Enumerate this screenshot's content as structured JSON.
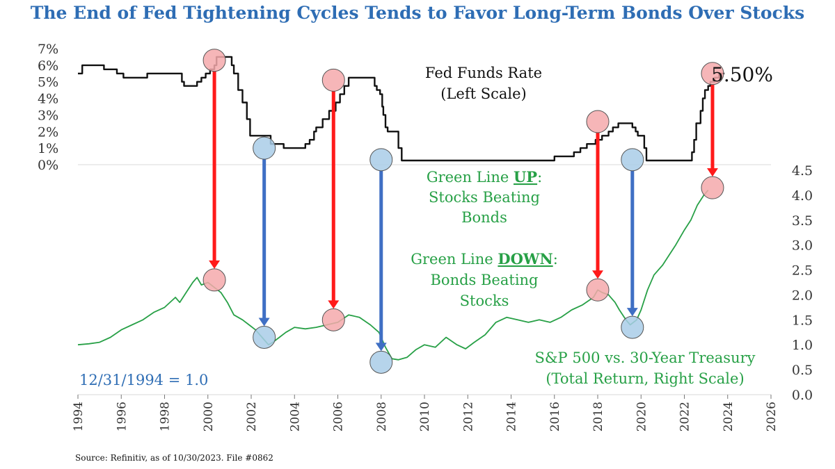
{
  "title": "The End of Fed Tightening Cycles Tends to Favor Long-Term Bonds Over Stocks",
  "source": "Source: Refinitiv, as of 10/30/2023. File #0862",
  "colors": {
    "title": "#2e6db4",
    "fed_line": "#111111",
    "ratio_line": "#27a046",
    "tightening_end": "#ff1a1a",
    "easing_start": "#3f6fc4",
    "pink_marker": "#f4a9ab",
    "blue_marker": "#a9cce8"
  },
  "chart_data": {
    "type": "line",
    "x_axis": {
      "range": [
        1994,
        2026
      ],
      "tick_labels": [
        "1994",
        "1996",
        "1998",
        "2000",
        "2002",
        "2004",
        "2006",
        "2008",
        "2010",
        "2012",
        "2014",
        "2016",
        "2018",
        "2020",
        "2022",
        "2024",
        "2026"
      ]
    },
    "left_axis": {
      "label": "Fed Funds Rate (Left Scale)",
      "range": [
        0,
        7
      ],
      "tick_labels": [
        "0%",
        "1%",
        "2%",
        "3%",
        "4%",
        "5%",
        "6%",
        "7%"
      ]
    },
    "right_axis": {
      "label": "S&P 500 vs. 30-Year Treasury (Total Return, Right Scale)",
      "range": [
        0,
        4.5
      ],
      "tick_labels": [
        "0.0",
        "0.5",
        "1.0",
        "1.5",
        "2.0",
        "2.5",
        "3.0",
        "3.5",
        "4.0",
        "4.5"
      ]
    },
    "series": [
      {
        "name": "Fed Funds Rate",
        "axis": "left",
        "step": true,
        "points": [
          [
            1994.0,
            5.5
          ],
          [
            1994.2,
            6.0
          ],
          [
            1994.6,
            6.0
          ],
          [
            1995.2,
            5.75
          ],
          [
            1995.8,
            5.5
          ],
          [
            1996.1,
            5.25
          ],
          [
            1997.2,
            5.5
          ],
          [
            1998.7,
            5.5
          ],
          [
            1998.8,
            5.0
          ],
          [
            1998.9,
            4.75
          ],
          [
            1999.5,
            5.0
          ],
          [
            1999.7,
            5.25
          ],
          [
            1999.9,
            5.5
          ],
          [
            2000.1,
            5.75
          ],
          [
            2000.3,
            6.0
          ],
          [
            2000.4,
            6.5
          ],
          [
            2001.0,
            6.5
          ],
          [
            2001.1,
            6.0
          ],
          [
            2001.2,
            5.5
          ],
          [
            2001.4,
            4.5
          ],
          [
            2001.6,
            3.75
          ],
          [
            2001.8,
            2.75
          ],
          [
            2001.95,
            1.75
          ],
          [
            2002.8,
            1.75
          ],
          [
            2002.9,
            1.25
          ],
          [
            2003.5,
            1.0
          ],
          [
            2004.4,
            1.0
          ],
          [
            2004.5,
            1.25
          ],
          [
            2004.7,
            1.5
          ],
          [
            2004.9,
            2.0
          ],
          [
            2005.0,
            2.25
          ],
          [
            2005.3,
            2.75
          ],
          [
            2005.6,
            3.25
          ],
          [
            2005.9,
            3.75
          ],
          [
            2006.1,
            4.25
          ],
          [
            2006.3,
            4.75
          ],
          [
            2006.5,
            5.25
          ],
          [
            2007.6,
            5.25
          ],
          [
            2007.7,
            4.75
          ],
          [
            2007.8,
            4.5
          ],
          [
            2007.95,
            4.25
          ],
          [
            2008.05,
            3.5
          ],
          [
            2008.1,
            3.0
          ],
          [
            2008.2,
            2.25
          ],
          [
            2008.3,
            2.0
          ],
          [
            2008.8,
            1.0
          ],
          [
            2008.95,
            0.25
          ],
          [
            2015.9,
            0.25
          ],
          [
            2016.0,
            0.5
          ],
          [
            2016.9,
            0.75
          ],
          [
            2017.2,
            1.0
          ],
          [
            2017.5,
            1.25
          ],
          [
            2017.9,
            1.5
          ],
          [
            2018.2,
            1.75
          ],
          [
            2018.5,
            2.0
          ],
          [
            2018.7,
            2.25
          ],
          [
            2018.95,
            2.5
          ],
          [
            2019.5,
            2.5
          ],
          [
            2019.6,
            2.25
          ],
          [
            2019.75,
            2.0
          ],
          [
            2019.85,
            1.75
          ],
          [
            2020.15,
            1.0
          ],
          [
            2020.25,
            0.25
          ],
          [
            2022.2,
            0.25
          ],
          [
            2022.35,
            0.75
          ],
          [
            2022.45,
            1.5
          ],
          [
            2022.55,
            2.5
          ],
          [
            2022.75,
            3.25
          ],
          [
            2022.85,
            4.0
          ],
          [
            2022.95,
            4.5
          ],
          [
            2023.1,
            4.75
          ],
          [
            2023.2,
            5.0
          ],
          [
            2023.4,
            5.25
          ],
          [
            2023.6,
            5.5
          ],
          [
            2023.85,
            5.5
          ]
        ]
      },
      {
        "name": "S&P 500 vs. 30-Year Treasury",
        "axis": "right",
        "points": [
          [
            1994.0,
            1.0
          ],
          [
            1994.5,
            1.02
          ],
          [
            1995.0,
            1.05
          ],
          [
            1995.5,
            1.15
          ],
          [
            1996.0,
            1.3
          ],
          [
            1996.5,
            1.4
          ],
          [
            1997.0,
            1.5
          ],
          [
            1997.5,
            1.65
          ],
          [
            1998.0,
            1.75
          ],
          [
            1998.5,
            1.95
          ],
          [
            1998.7,
            1.85
          ],
          [
            1999.0,
            2.05
          ],
          [
            1999.3,
            2.25
          ],
          [
            1999.5,
            2.35
          ],
          [
            1999.7,
            2.2
          ],
          [
            2000.0,
            2.25
          ],
          [
            2000.3,
            2.15
          ],
          [
            2000.6,
            2.05
          ],
          [
            2000.9,
            1.85
          ],
          [
            2001.2,
            1.6
          ],
          [
            2001.6,
            1.5
          ],
          [
            2001.9,
            1.4
          ],
          [
            2002.2,
            1.3
          ],
          [
            2002.5,
            1.15
          ],
          [
            2002.8,
            1.0
          ],
          [
            2003.0,
            1.05
          ],
          [
            2003.3,
            1.15
          ],
          [
            2003.6,
            1.25
          ],
          [
            2004.0,
            1.35
          ],
          [
            2004.5,
            1.32
          ],
          [
            2005.0,
            1.35
          ],
          [
            2005.5,
            1.4
          ],
          [
            2006.0,
            1.45
          ],
          [
            2006.5,
            1.6
          ],
          [
            2007.0,
            1.55
          ],
          [
            2007.5,
            1.4
          ],
          [
            2007.9,
            1.25
          ],
          [
            2008.2,
            0.95
          ],
          [
            2008.5,
            0.72
          ],
          [
            2008.8,
            0.7
          ],
          [
            2009.2,
            0.75
          ],
          [
            2009.6,
            0.9
          ],
          [
            2010.0,
            1.0
          ],
          [
            2010.5,
            0.95
          ],
          [
            2011.0,
            1.15
          ],
          [
            2011.5,
            1.0
          ],
          [
            2011.9,
            0.92
          ],
          [
            2012.3,
            1.05
          ],
          [
            2012.8,
            1.2
          ],
          [
            2013.3,
            1.45
          ],
          [
            2013.8,
            1.55
          ],
          [
            2014.3,
            1.5
          ],
          [
            2014.8,
            1.45
          ],
          [
            2015.3,
            1.5
          ],
          [
            2015.8,
            1.45
          ],
          [
            2016.3,
            1.55
          ],
          [
            2016.8,
            1.7
          ],
          [
            2017.3,
            1.8
          ],
          [
            2017.8,
            1.95
          ],
          [
            2018.0,
            2.1
          ],
          [
            2018.2,
            2.05
          ],
          [
            2018.5,
            2.0
          ],
          [
            2018.8,
            1.85
          ],
          [
            2019.0,
            1.7
          ],
          [
            2019.3,
            1.5
          ],
          [
            2019.5,
            1.4
          ],
          [
            2019.8,
            1.5
          ],
          [
            2020.0,
            1.7
          ],
          [
            2020.3,
            2.1
          ],
          [
            2020.6,
            2.4
          ],
          [
            2021.0,
            2.6
          ],
          [
            2021.3,
            2.8
          ],
          [
            2021.6,
            3.0
          ],
          [
            2022.0,
            3.3
          ],
          [
            2022.3,
            3.5
          ],
          [
            2022.6,
            3.8
          ],
          [
            2022.9,
            4.0
          ],
          [
            2023.1,
            4.1
          ]
        ]
      }
    ],
    "markers": [
      {
        "x": 2000.3,
        "left": 6.3,
        "kind": "tightening_peak"
      },
      {
        "x": 2005.8,
        "left": 5.1,
        "kind": "tightening_peak"
      },
      {
        "x": 2018.0,
        "left": 2.6,
        "kind": "tightening_peak"
      },
      {
        "x": 2023.3,
        "left": 5.5,
        "kind": "tightening_peak"
      },
      {
        "x": 2002.6,
        "left": 1.0,
        "kind": "easing_start"
      },
      {
        "x": 2008.0,
        "left": 0.3,
        "kind": "easing_start"
      },
      {
        "x": 2019.6,
        "left": 0.3,
        "kind": "easing_start"
      },
      {
        "x": 2000.3,
        "right": 2.3,
        "kind": "ratio_peak"
      },
      {
        "x": 2005.8,
        "right": 1.5,
        "kind": "ratio_peak"
      },
      {
        "x": 2018.0,
        "right": 2.1,
        "kind": "ratio_peak"
      },
      {
        "x": 2023.3,
        "right": 4.15,
        "kind": "ratio_peak"
      },
      {
        "x": 2002.6,
        "right": 1.15,
        "kind": "ratio_trough"
      },
      {
        "x": 2008.0,
        "right": 0.65,
        "kind": "ratio_trough"
      },
      {
        "x": 2019.6,
        "right": 1.35,
        "kind": "ratio_trough"
      }
    ],
    "arrows": [
      {
        "x": 2000.3,
        "from_left": 6.3,
        "to_right": 2.3,
        "kind": "tightening_end"
      },
      {
        "x": 2005.8,
        "from_left": 5.1,
        "to_right": 1.5,
        "kind": "tightening_end"
      },
      {
        "x": 2018.0,
        "from_left": 2.6,
        "to_right": 2.1,
        "kind": "tightening_end"
      },
      {
        "x": 2023.3,
        "from_left": 5.5,
        "to_right": 4.15,
        "kind": "tightening_end"
      },
      {
        "x": 2002.6,
        "from_left": 1.0,
        "to_right": 1.15,
        "kind": "easing_start"
      },
      {
        "x": 2008.0,
        "from_left": 0.3,
        "to_right": 0.65,
        "kind": "easing_start"
      },
      {
        "x": 2019.6,
        "from_left": 0.3,
        "to_right": 1.35,
        "kind": "easing_start"
      }
    ],
    "annotations": {
      "current_rate": "5.50%",
      "fed_label_line1": "Fed Funds Rate",
      "fed_label_line2": "(Left Scale)",
      "green_up_prefix": "Green Line ",
      "green_up_keyword": "UP",
      "green_up_suffix": ":",
      "green_up_line2": "Stocks Beating",
      "green_up_line3": "Bonds",
      "green_down_prefix": "Green Line ",
      "green_down_keyword": "DOWN",
      "green_down_suffix": ":",
      "green_down_line2": "Bonds Beating",
      "green_down_line3": "Stocks",
      "ratio_label_line1": "S&P 500 vs. 30-Year Treasury",
      "ratio_label_line2": "(Total Return, Right Scale)",
      "baseline_note": "12/31/1994 = 1.0"
    }
  }
}
